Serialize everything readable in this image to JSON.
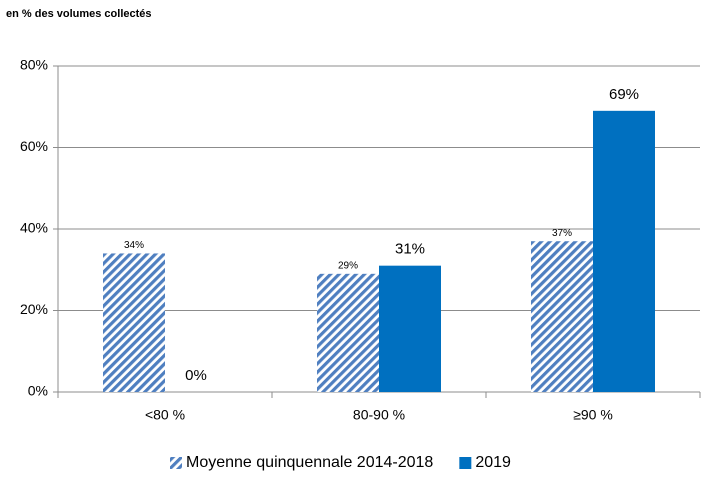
{
  "chart_data": {
    "type": "bar",
    "subtitle": "en % des volumes collectés",
    "categories": [
      "<80 %",
      "80-90 %",
      "≥90 %"
    ],
    "series": [
      {
        "name": "Moyenne quinquennale 2014-2018",
        "color": "#4f7fc0",
        "hatch": true,
        "values": [
          34,
          29,
          37
        ],
        "value_labels": [
          "34%",
          "29%",
          "37%"
        ]
      },
      {
        "name": "2019",
        "color": "#0070c0",
        "hatch": false,
        "values": [
          0,
          31,
          69
        ],
        "value_labels": [
          "0%",
          "31%",
          "69%"
        ]
      }
    ],
    "ylim": [
      0,
      80
    ],
    "yticks": [
      {
        "value": 0,
        "label": "0%"
      },
      {
        "value": 20,
        "label": "20%"
      },
      {
        "value": 40,
        "label": "40%"
      },
      {
        "value": 60,
        "label": "60%"
      },
      {
        "value": 80,
        "label": "80%"
      }
    ],
    "grid": true,
    "legend": "bottom"
  }
}
